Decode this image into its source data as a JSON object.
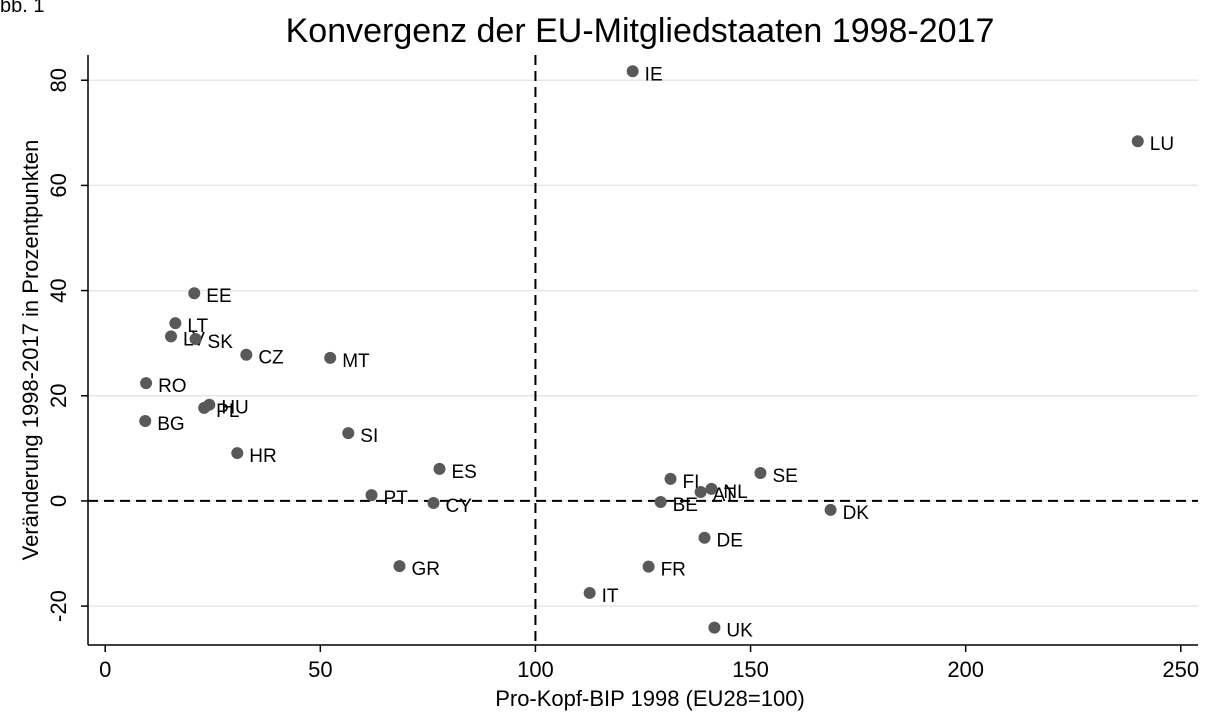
{
  "chart_data": {
    "type": "scatter",
    "annotation": "bb. 1",
    "title": "Konvergenz der EU-Mitgliedstaaten 1998-2017",
    "xlabel": "Pro-Kopf-BIP 1998 (EU28=100)",
    "ylabel": "Veränderung 1998-2017 in Prozentpunkten",
    "labels": [
      "IE",
      "LU",
      "EE",
      "LT",
      "LV",
      "SK",
      "CZ",
      "MT",
      "RO",
      "BG",
      "HU",
      "PL",
      "SI",
      "HR",
      "ES",
      "PT",
      "CY",
      "GR",
      "FI",
      "AT",
      "NL",
      "SE",
      "BE",
      "DK",
      "DE",
      "FR",
      "IT",
      "UK"
    ],
    "x": [
      122.6,
      240,
      20.7,
      16.3,
      15.3,
      21,
      32.8,
      52.3,
      9.5,
      9.3,
      24.2,
      23,
      56.5,
      30.7,
      77.7,
      61.9,
      76.3,
      68.4,
      131.4,
      138.4,
      140.9,
      152.3,
      129.1,
      168.6,
      139.3,
      126.3,
      112.6,
      141.6
    ],
    "values": [
      81.7,
      68.4,
      39.5,
      33.8,
      31.3,
      30.8,
      27.8,
      27.2,
      22.4,
      15.2,
      18.3,
      17.7,
      12.9,
      9.1,
      6.1,
      1.1,
      -0.4,
      -12.4,
      4.2,
      1.7,
      2.3,
      5.3,
      -0.2,
      -1.7,
      -7.0,
      -12.5,
      -17.5,
      -24.1
    ],
    "color": "#595959",
    "xlim": [
      -4,
      254
    ],
    "ylim": [
      -27.4,
      84.8
    ],
    "xticks": [
      0,
      50,
      100,
      150,
      200,
      250
    ],
    "yticks": [
      -20,
      0,
      20,
      40,
      60,
      80
    ],
    "grid": true,
    "reference_lines": {
      "x": 100,
      "y": 0
    }
  }
}
